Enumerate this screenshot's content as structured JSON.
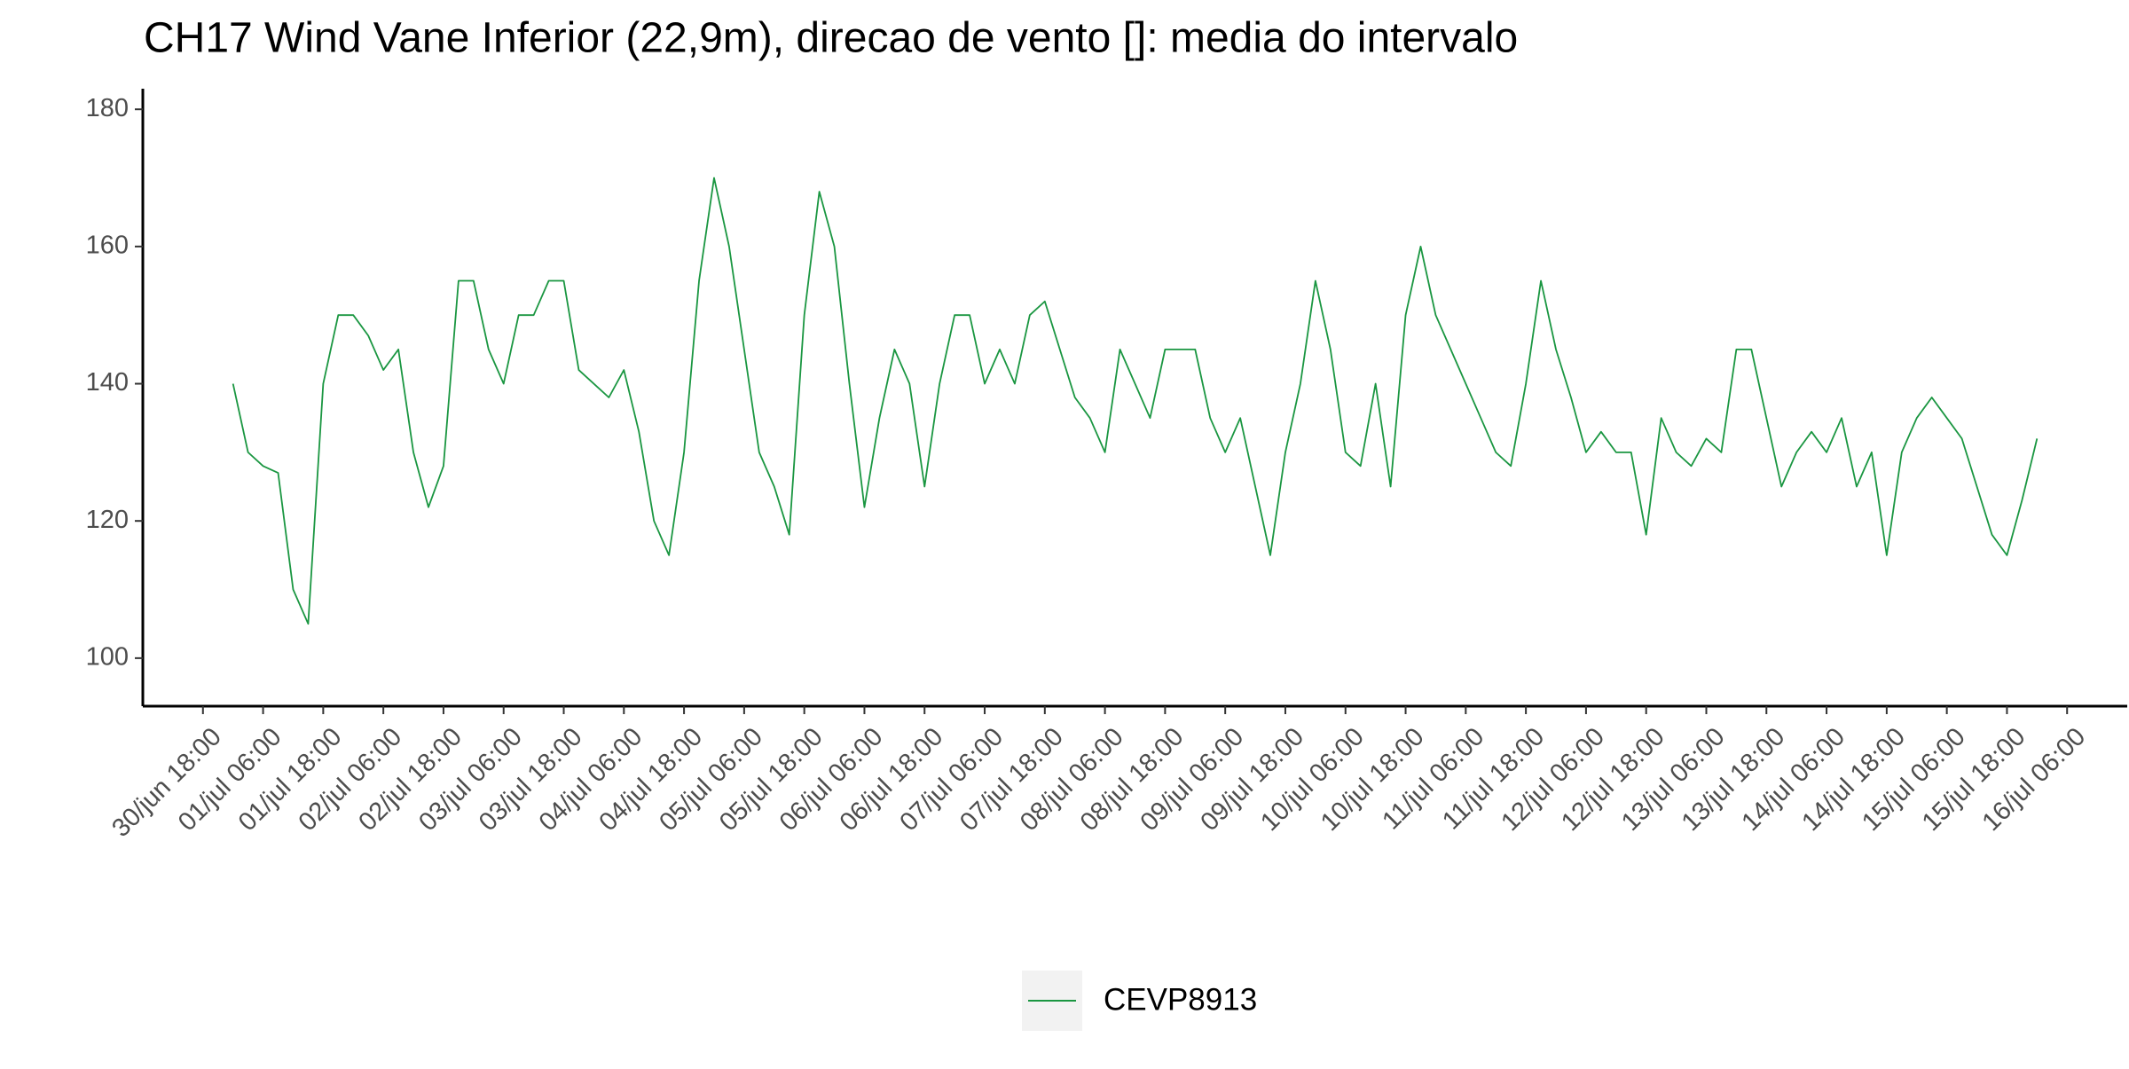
{
  "chart_data": {
    "type": "line",
    "title": "CH17 Wind Vane Inferior (22,9m), direcao de vento []: media do intervalo",
    "x": [
      "07-01 00:00",
      "07-01 03:00",
      "07-01 06:00",
      "07-01 09:00",
      "07-01 12:00",
      "07-01 15:00",
      "07-01 18:00",
      "07-01 21:00",
      "07-02 00:00",
      "07-02 03:00",
      "07-02 06:00",
      "07-02 09:00",
      "07-02 12:00",
      "07-02 15:00",
      "07-02 18:00",
      "07-02 21:00",
      "07-03 00:00",
      "07-03 03:00",
      "07-03 06:00",
      "07-03 09:00",
      "07-03 12:00",
      "07-03 15:00",
      "07-03 18:00",
      "07-03 21:00",
      "07-04 00:00",
      "07-04 03:00",
      "07-04 06:00",
      "07-04 09:00",
      "07-04 12:00",
      "07-04 15:00",
      "07-04 18:00",
      "07-04 21:00",
      "07-05 00:00",
      "07-05 03:00",
      "07-05 06:00",
      "07-05 09:00",
      "07-05 12:00",
      "07-05 15:00",
      "07-05 18:00",
      "07-05 21:00",
      "07-06 00:00",
      "07-06 03:00",
      "07-06 06:00",
      "07-06 09:00",
      "07-06 12:00",
      "07-06 15:00",
      "07-06 18:00",
      "07-06 21:00",
      "07-07 00:00",
      "07-07 03:00",
      "07-07 06:00",
      "07-07 09:00",
      "07-07 12:00",
      "07-07 15:00",
      "07-07 18:00",
      "07-07 21:00",
      "07-08 00:00",
      "07-08 03:00",
      "07-08 06:00",
      "07-08 09:00",
      "07-08 12:00",
      "07-08 15:00",
      "07-08 18:00",
      "07-08 21:00",
      "07-09 00:00",
      "07-09 03:00",
      "07-09 06:00",
      "07-09 09:00",
      "07-09 12:00",
      "07-09 15:00",
      "07-09 18:00",
      "07-09 21:00",
      "07-10 00:00",
      "07-10 03:00",
      "07-10 06:00",
      "07-10 09:00",
      "07-10 12:00",
      "07-10 15:00",
      "07-10 18:00",
      "07-10 21:00",
      "07-11 00:00",
      "07-11 03:00",
      "07-11 06:00",
      "07-11 09:00",
      "07-11 12:00",
      "07-11 15:00",
      "07-11 18:00",
      "07-11 21:00",
      "07-12 00:00",
      "07-12 03:00",
      "07-12 06:00",
      "07-12 09:00",
      "07-12 12:00",
      "07-12 15:00",
      "07-12 18:00",
      "07-12 21:00",
      "07-13 00:00",
      "07-13 03:00",
      "07-13 06:00",
      "07-13 09:00",
      "07-13 12:00",
      "07-13 15:00",
      "07-13 18:00",
      "07-13 21:00",
      "07-14 00:00",
      "07-14 03:00",
      "07-14 06:00",
      "07-14 09:00",
      "07-14 12:00",
      "07-14 15:00",
      "07-14 18:00",
      "07-14 21:00",
      "07-15 00:00",
      "07-15 03:00",
      "07-15 06:00",
      "07-15 09:00",
      "07-15 12:00",
      "07-15 15:00",
      "07-15 18:00",
      "07-15 21:00",
      "07-16 00:00"
    ],
    "series": [
      {
        "name": "CEVP8913",
        "color": "#1a9641",
        "values": [
          140,
          130,
          128,
          127,
          110,
          105,
          140,
          150,
          150,
          147,
          142,
          145,
          130,
          122,
          128,
          155,
          155,
          145,
          140,
          150,
          150,
          155,
          155,
          142,
          140,
          138,
          142,
          133,
          120,
          115,
          130,
          155,
          170,
          160,
          145,
          130,
          125,
          118,
          150,
          168,
          160,
          140,
          122,
          135,
          145,
          140,
          125,
          140,
          150,
          150,
          140,
          145,
          140,
          150,
          152,
          145,
          138,
          135,
          130,
          145,
          140,
          135,
          145,
          145,
          145,
          135,
          130,
          135,
          125,
          115,
          130,
          140,
          155,
          145,
          130,
          128,
          140,
          125,
          150,
          160,
          150,
          145,
          140,
          135,
          130,
          128,
          140,
          155,
          145,
          138,
          130,
          133,
          130,
          130,
          118,
          135,
          130,
          128,
          132,
          130,
          145,
          145,
          135,
          125,
          130,
          133,
          130,
          135,
          125,
          130,
          115,
          130,
          135,
          138,
          135,
          132,
          125,
          118,
          115,
          123,
          132
        ]
      }
    ],
    "xlim": [
      "06-30 06:00",
      "07-16 18:00"
    ],
    "xticks": [
      {
        "value": "06-30 18:00",
        "label": "30/jun 18:00"
      },
      {
        "value": "07-01 06:00",
        "label": "01/jul 06:00"
      },
      {
        "value": "07-01 18:00",
        "label": "01/jul 18:00"
      },
      {
        "value": "07-02 06:00",
        "label": "02/jul 06:00"
      },
      {
        "value": "07-02 18:00",
        "label": "02/jul 18:00"
      },
      {
        "value": "07-03 06:00",
        "label": "03/jul 06:00"
      },
      {
        "value": "07-03 18:00",
        "label": "03/jul 18:00"
      },
      {
        "value": "07-04 06:00",
        "label": "04/jul 06:00"
      },
      {
        "value": "07-04 18:00",
        "label": "04/jul 18:00"
      },
      {
        "value": "07-05 06:00",
        "label": "05/jul 06:00"
      },
      {
        "value": "07-05 18:00",
        "label": "05/jul 18:00"
      },
      {
        "value": "07-06 06:00",
        "label": "06/jul 06:00"
      },
      {
        "value": "07-06 18:00",
        "label": "06/jul 18:00"
      },
      {
        "value": "07-07 06:00",
        "label": "07/jul 06:00"
      },
      {
        "value": "07-07 18:00",
        "label": "07/jul 18:00"
      },
      {
        "value": "07-08 06:00",
        "label": "08/jul 06:00"
      },
      {
        "value": "07-08 18:00",
        "label": "08/jul 18:00"
      },
      {
        "value": "07-09 06:00",
        "label": "09/jul 06:00"
      },
      {
        "value": "07-09 18:00",
        "label": "09/jul 18:00"
      },
      {
        "value": "07-10 06:00",
        "label": "10/jul 06:00"
      },
      {
        "value": "07-10 18:00",
        "label": "10/jul 18:00"
      },
      {
        "value": "07-11 06:00",
        "label": "11/jul 06:00"
      },
      {
        "value": "07-11 18:00",
        "label": "11/jul 18:00"
      },
      {
        "value": "07-12 06:00",
        "label": "12/jul 06:00"
      },
      {
        "value": "07-12 18:00",
        "label": "12/jul 18:00"
      },
      {
        "value": "07-13 06:00",
        "label": "13/jul 06:00"
      },
      {
        "value": "07-13 18:00",
        "label": "13/jul 18:00"
      },
      {
        "value": "07-14 06:00",
        "label": "14/jul 06:00"
      },
      {
        "value": "07-14 18:00",
        "label": "14/jul 18:00"
      },
      {
        "value": "07-15 06:00",
        "label": "15/jul 06:00"
      },
      {
        "value": "07-15 18:00",
        "label": "15/jul 18:00"
      },
      {
        "value": "07-16 06:00",
        "label": "16/jul 06:00"
      }
    ],
    "ylim": [
      93,
      183
    ],
    "yticks": [
      100,
      120,
      140,
      160,
      180
    ],
    "grid": false,
    "legend_position": "bottom"
  }
}
